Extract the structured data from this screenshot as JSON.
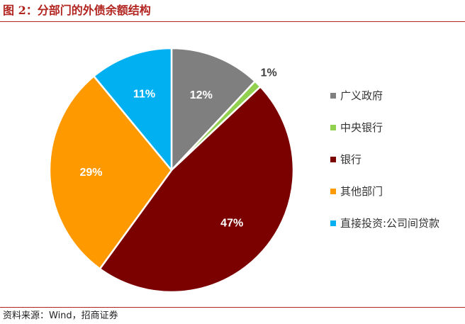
{
  "header": {
    "title": "图 2：分部门的外债余额结构"
  },
  "chart_data": {
    "type": "pie",
    "title": "",
    "slices": [
      {
        "name": "广义政府",
        "value": 12,
        "label": "12%",
        "color": "#7f7f7f"
      },
      {
        "name": "中央银行",
        "value": 1,
        "label": "1%",
        "color": "#92d050"
      },
      {
        "name": "银行",
        "value": 47,
        "label": "47%",
        "color": "#7b0000"
      },
      {
        "name": "其他部门",
        "value": 29,
        "label": "29%",
        "color": "#ff9900"
      },
      {
        "name": "直接投资:公司间贷款",
        "value": 11,
        "label": "11%",
        "color": "#00b0f0"
      }
    ],
    "legend_position": "right"
  },
  "footer": {
    "source": "资料来源：Wind，招商证券"
  },
  "colors": {
    "accent": "#b2241f"
  }
}
